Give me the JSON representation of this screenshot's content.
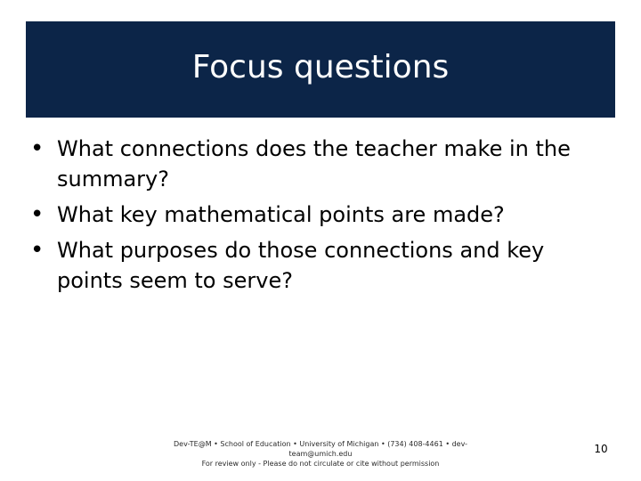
{
  "slide": {
    "title": "Focus questions",
    "title_bar_color": "#0c2548",
    "bullet_glyph": "•",
    "bullets": [
      {
        "text": "What connections does the teacher make in the summary?"
      },
      {
        "text": "What key mathematical points are made?"
      },
      {
        "text": "What purposes do those connections and key points seem to serve?"
      }
    ],
    "footer": {
      "line1": "Dev-TE@M • School of Education • University of Michigan • (734) 408-4461 • dev-team@umich.edu",
      "line2": "For review only - Please do not circulate or cite without permission"
    },
    "page_number": "10"
  }
}
